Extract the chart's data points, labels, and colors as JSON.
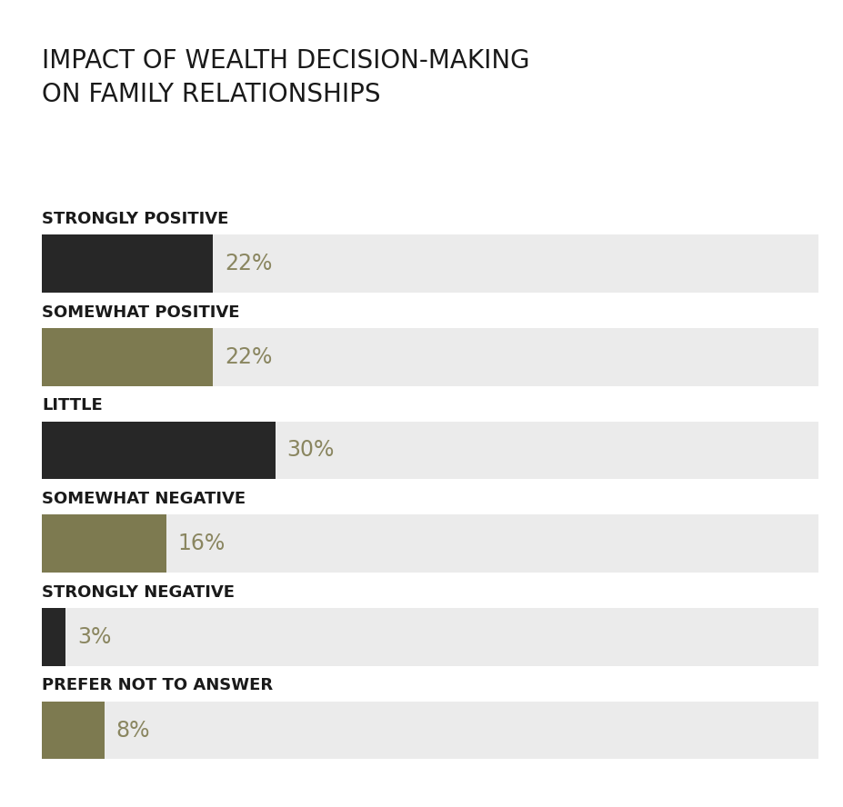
{
  "title": "IMPACT OF WEALTH DECISION-MAKING\nON FAMILY RELATIONSHIPS",
  "categories": [
    "STRONGLY POSITIVE",
    "SOMEWHAT POSITIVE",
    "LITTLE",
    "SOMEWHAT NEGATIVE",
    "STRONGLY NEGATIVE",
    "PREFER NOT TO ANSWER"
  ],
  "values": [
    22,
    22,
    30,
    16,
    3,
    8
  ],
  "bar_colors": [
    "#272727",
    "#7d7a50",
    "#272727",
    "#7d7a50",
    "#272727",
    "#7d7a50"
  ],
  "bg_bar_color": "#ebebeb",
  "label_color": "#8a8660",
  "title_color": "#1a1a1a",
  "category_color": "#1a1a1a",
  "max_value": 100,
  "background_color": "#ffffff",
  "title_fontsize": 20,
  "category_fontsize": 13,
  "value_fontsize": 17,
  "bar_height": 0.62,
  "figsize": [
    9.28,
    8.88
  ],
  "dpi": 100
}
